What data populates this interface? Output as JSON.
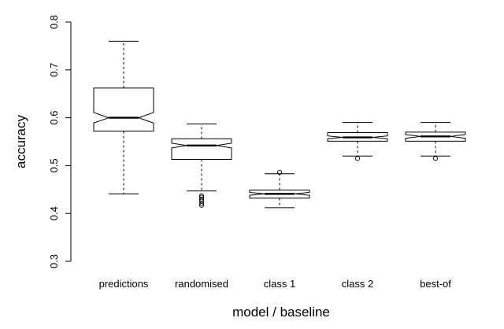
{
  "chart_data": {
    "type": "box",
    "xlabel": "model / baseline",
    "ylabel": "accuracy",
    "ylim": [
      0.3,
      0.8
    ],
    "yticks": [
      "0.3",
      "0.4",
      "0.5",
      "0.6",
      "0.7",
      "0.8"
    ],
    "notched": true,
    "categories": [
      "predictions",
      "randomised",
      "class 1",
      "class 2",
      "best-of"
    ],
    "boxes": [
      {
        "name": "predictions",
        "min": 0.441,
        "q1": 0.572,
        "median": 0.6,
        "q3": 0.662,
        "max": 0.76,
        "notch_low": 0.589,
        "notch_high": 0.611,
        "outliers": []
      },
      {
        "name": "randomised",
        "min": 0.447,
        "q1": 0.513,
        "median": 0.542,
        "q3": 0.556,
        "max": 0.587,
        "notch_low": 0.537,
        "notch_high": 0.547,
        "outliers": [
          0.417,
          0.421,
          0.426,
          0.43,
          0.434,
          0.437
        ]
      },
      {
        "name": "class 1",
        "min": 0.412,
        "q1": 0.432,
        "median": 0.441,
        "q3": 0.449,
        "max": 0.483,
        "notch_low": 0.438,
        "notch_high": 0.444,
        "outliers": [
          0.486
        ]
      },
      {
        "name": "class 2",
        "min": 0.52,
        "q1": 0.551,
        "median": 0.559,
        "q3": 0.569,
        "max": 0.59,
        "notch_low": 0.556,
        "notch_high": 0.562,
        "outliers": [
          0.515
        ]
      },
      {
        "name": "best-of",
        "min": 0.52,
        "q1": 0.551,
        "median": 0.561,
        "q3": 0.57,
        "max": 0.59,
        "notch_low": 0.557,
        "notch_high": 0.565,
        "outliers": [
          0.515
        ]
      }
    ]
  }
}
